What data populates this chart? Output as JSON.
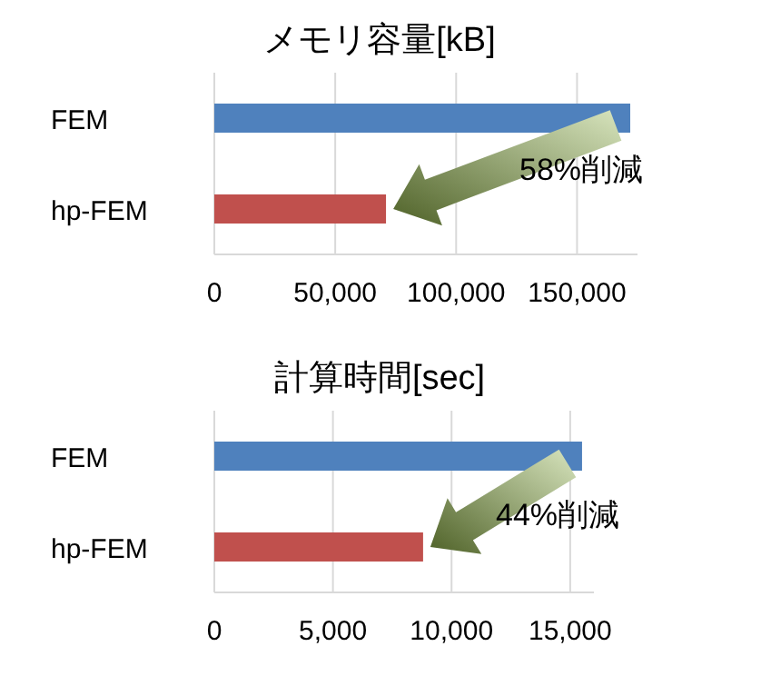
{
  "chart_data": [
    {
      "type": "bar",
      "orientation": "horizontal",
      "title": "メモリ容量[kB]",
      "categories": [
        "FEM",
        "hp-FEM"
      ],
      "values": [
        172000,
        71000
      ],
      "colors": [
        "#4f81bd",
        "#c0504d"
      ],
      "xlim": [
        0,
        175000
      ],
      "xticks": [
        {
          "value": 0,
          "label": "0"
        },
        {
          "value": 50000,
          "label": "50,000"
        },
        {
          "value": 100000,
          "label": "100,000"
        },
        {
          "value": 150000,
          "label": "150,000"
        }
      ],
      "grid": "x",
      "annotations": [
        "58%削減"
      ]
    },
    {
      "type": "bar",
      "orientation": "horizontal",
      "title": "計算時間[sec]",
      "categories": [
        "FEM",
        "hp-FEM"
      ],
      "values": [
        15500,
        8800
      ],
      "colors": [
        "#4f81bd",
        "#c0504d"
      ],
      "xlim": [
        0,
        16000
      ],
      "xticks": [
        {
          "value": 0,
          "label": "0"
        },
        {
          "value": 5000,
          "label": "5,000"
        },
        {
          "value": 10000,
          "label": "10,000"
        },
        {
          "value": 15000,
          "label": "15,000"
        }
      ],
      "grid": "x",
      "annotations": [
        "44%削減"
      ]
    }
  ]
}
